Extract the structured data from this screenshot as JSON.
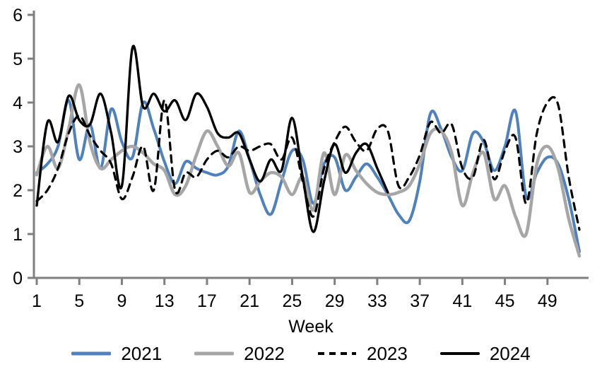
{
  "chart_data": {
    "type": "line",
    "title": "",
    "xlabel": "Week",
    "ylabel": "",
    "ylim": [
      0,
      6
    ],
    "y_ticks": [
      0,
      1,
      2,
      3,
      4,
      5,
      6
    ],
    "x_ticks": [
      1,
      5,
      9,
      13,
      17,
      21,
      25,
      29,
      33,
      37,
      41,
      45,
      49
    ],
    "x": [
      1,
      2,
      3,
      4,
      5,
      6,
      7,
      8,
      9,
      10,
      11,
      12,
      13,
      14,
      15,
      16,
      17,
      18,
      19,
      20,
      21,
      22,
      23,
      24,
      25,
      26,
      27,
      28,
      29,
      30,
      31,
      32,
      33,
      34,
      35,
      36,
      37,
      38,
      39,
      40,
      41,
      42,
      43,
      44,
      45,
      46,
      47,
      48,
      49,
      50,
      51,
      52
    ],
    "grid": false,
    "legend_position": "bottom",
    "axis_color": "#7f7f7f",
    "smoothed": true,
    "series": [
      {
        "name": "2021",
        "color": "#4f81bd",
        "style": "solid",
        "width": 4,
        "values": [
          2.4,
          2.6,
          3.0,
          4.05,
          2.7,
          3.5,
          2.5,
          3.85,
          3.1,
          2.75,
          4.0,
          3.4,
          2.65,
          2.15,
          2.65,
          2.5,
          2.4,
          2.35,
          2.55,
          3.35,
          2.7,
          1.9,
          1.45,
          2.2,
          2.9,
          2.7,
          1.7,
          2.6,
          2.75,
          2.0,
          2.3,
          2.6,
          2.3,
          1.9,
          1.45,
          1.3,
          2.2,
          3.75,
          3.4,
          2.75,
          2.45,
          3.3,
          3.1,
          2.45,
          3.0,
          3.8,
          1.85,
          2.4,
          2.75,
          2.6,
          1.8,
          0.6
        ]
      },
      {
        "name": "2022",
        "color": "#a6a6a6",
        "style": "solid",
        "width": 4.5,
        "values": [
          2.35,
          3.0,
          2.5,
          3.4,
          4.4,
          3.1,
          2.5,
          2.7,
          2.9,
          3.0,
          2.85,
          2.6,
          2.45,
          1.9,
          2.1,
          2.8,
          3.35,
          3.0,
          2.55,
          2.85,
          1.95,
          2.2,
          2.4,
          2.3,
          1.9,
          2.3,
          1.55,
          2.85,
          1.9,
          2.8,
          2.45,
          2.15,
          1.95,
          1.9,
          1.95,
          2.1,
          2.6,
          3.3,
          3.35,
          2.85,
          1.65,
          2.4,
          2.85,
          1.8,
          2.1,
          1.4,
          1.0,
          2.6,
          3.0,
          2.5,
          1.35,
          0.5
        ]
      },
      {
        "name": "2023",
        "color": "#000000",
        "style": "dashed",
        "width": 3.2,
        "values": [
          1.75,
          2.0,
          2.5,
          3.3,
          3.7,
          3.25,
          2.9,
          2.6,
          1.8,
          2.3,
          3.0,
          2.0,
          4.05,
          2.0,
          2.4,
          2.3,
          2.7,
          2.9,
          2.75,
          3.0,
          2.9,
          3.0,
          3.05,
          2.7,
          3.2,
          2.2,
          1.4,
          2.5,
          3.1,
          3.45,
          3.1,
          2.9,
          3.4,
          3.35,
          2.1,
          2.3,
          2.8,
          3.55,
          3.3,
          3.5,
          2.5,
          2.3,
          3.15,
          2.25,
          2.9,
          3.2,
          1.7,
          3.3,
          4.0,
          3.95,
          2.3,
          1.1
        ]
      },
      {
        "name": "2024",
        "color": "#000000",
        "style": "solid",
        "width": 3.4,
        "values": [
          1.65,
          3.55,
          3.1,
          4.15,
          3.6,
          3.5,
          4.2,
          3.3,
          2.1,
          5.25,
          3.9,
          4.2,
          3.8,
          4.05,
          3.6,
          4.2,
          3.9,
          3.3,
          3.2,
          3.3,
          2.7,
          2.2,
          2.7,
          2.45,
          3.65,
          2.3,
          1.05,
          2.2,
          3.05,
          2.4,
          2.85,
          3.05,
          2.5,
          1.95
        ]
      }
    ]
  }
}
